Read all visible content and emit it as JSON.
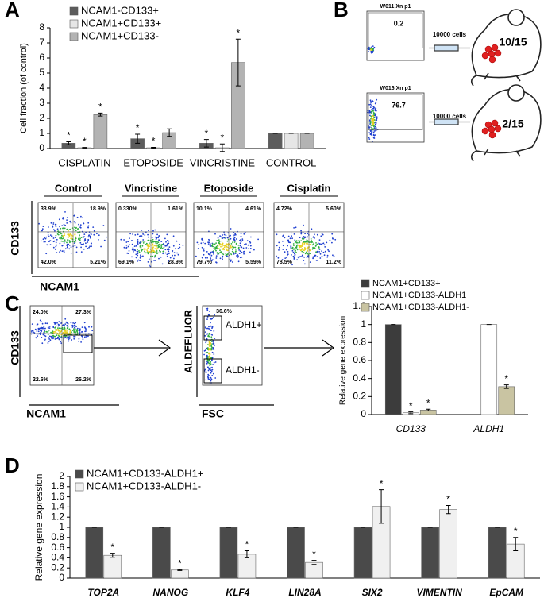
{
  "panel_labels": {
    "a": "A",
    "b": "B",
    "c": "C",
    "d": "D"
  },
  "chart_data": [
    {
      "type": "bar",
      "ylabel": "Cell fraction (of control)",
      "categories": [
        "CISPLATIN",
        "ETOPOSIDE",
        "VINCRISTINE",
        "CONTROL"
      ],
      "series": [
        {
          "name": "NCAM1-CD133+",
          "color": "#5c5c5c",
          "values": [
            0.35,
            0.65,
            0.35,
            1
          ],
          "errors": [
            0.1,
            0.3,
            0.25,
            0
          ],
          "labels": [
            "*",
            "*",
            "*",
            null
          ]
        },
        {
          "name": "NCAM1+CD133+",
          "color": "#e6e6e6",
          "values": [
            0.05,
            0.05,
            0.05,
            1
          ],
          "errors": [
            0.02,
            0.03,
            0.25,
            0
          ],
          "labels": [
            "*",
            "*",
            "*",
            null
          ]
        },
        {
          "name": "NCAM1+CD133-",
          "color": "#b3b3b3",
          "values": [
            2.25,
            1.05,
            5.7,
            1
          ],
          "errors": [
            0.1,
            0.25,
            1.55,
            0
          ],
          "labels": [
            "*",
            null,
            "*",
            null
          ]
        }
      ],
      "ylim": [
        0,
        8
      ],
      "yticks": [
        0,
        1,
        2,
        3,
        4,
        5,
        6,
        7,
        8
      ],
      "grid": false
    },
    {
      "type": "bar",
      "ylabel": "Relative gene expression",
      "categories": [
        "CD133",
        "ALDH1"
      ],
      "series": [
        {
          "name": "NCAM1+CD133+",
          "color": "#3c3c3c",
          "values": [
            1,
            null
          ],
          "errors": [
            0,
            null
          ],
          "labels": [
            null,
            null
          ]
        },
        {
          "name": "NCAM1+CD133-ALDH1+",
          "color": "#ffffff",
          "values": [
            0.02,
            1
          ],
          "errors": [
            0.01,
            0
          ],
          "labels": [
            "*",
            null
          ]
        },
        {
          "name": "NCAM1+CD133-ALDH1-",
          "color": "#c9c4a2",
          "values": [
            0.05,
            0.31
          ],
          "errors": [
            0.01,
            0.02
          ],
          "labels": [
            "*",
            "*"
          ]
        }
      ],
      "ylim": [
        0,
        1.2
      ],
      "yticks": [
        0,
        0.2,
        0.4,
        0.6,
        0.8,
        1,
        1.2
      ],
      "grid": false
    },
    {
      "type": "bar",
      "ylabel": "Relative gene expression",
      "categories": [
        "TOP2A",
        "NANOG",
        "KLF4",
        "LIN28A",
        "SIX2",
        "VIMENTIN",
        "EpCAM"
      ],
      "series": [
        {
          "name": "NCAM1+CD133-ALDH1+",
          "color": "#4a4a4a",
          "values": [
            1,
            1,
            1,
            1,
            1,
            1,
            1
          ],
          "errors": [
            0,
            0,
            0,
            0,
            0,
            0,
            0
          ],
          "labels": [
            null,
            null,
            null,
            null,
            null,
            null,
            null
          ]
        },
        {
          "name": "NCAM1+CD133-ALDH1-",
          "color": "#f0f0f0",
          "values": [
            0.45,
            0.16,
            0.47,
            0.31,
            1.41,
            1.35,
            0.67
          ],
          "errors": [
            0.04,
            0.01,
            0.07,
            0.04,
            0.33,
            0.08,
            0.13
          ],
          "labels": [
            "*",
            "*",
            "*",
            "*",
            "*",
            "*",
            "*"
          ]
        }
      ],
      "ylim": [
        0,
        2
      ],
      "yticks": [
        0,
        0.2,
        0.4,
        0.6,
        0.8,
        1,
        1.2,
        1.4,
        1.6,
        1.8,
        2
      ],
      "grid": false
    }
  ],
  "flow_a": {
    "y_label": "CD133",
    "x_label": "NCAM1",
    "plots": [
      {
        "title": "Control",
        "quadrants": [
          "33.9%",
          "18.9%",
          "42.0%",
          "5.21%"
        ]
      },
      {
        "title": "Vincristine",
        "quadrants": [
          "0.330%",
          "1.61%",
          "69.1%",
          "28.9%"
        ]
      },
      {
        "title": "Etoposide",
        "quadrants": [
          "10.1%",
          "4.61%",
          "79.7%",
          "5.59%"
        ]
      },
      {
        "title": "Cisplatin",
        "quadrants": [
          "4.72%",
          "5.60%",
          "78.5%",
          "11.2%"
        ]
      }
    ]
  },
  "panel_b": {
    "rows": [
      {
        "sample": "W011 Xn p1",
        "gate": "0.2",
        "cells": "10000 cells",
        "tumors": "10/15"
      },
      {
        "sample": "W016 Xn p1",
        "gate": "76.7",
        "cells": "10000 cells",
        "tumors": "2/15"
      }
    ]
  },
  "flow_c": {
    "plot1": {
      "y_label": "CD133",
      "x_label": "NCAM1",
      "quadrants": [
        "24.0%",
        "27.3%",
        "22.6%",
        "26.2%"
      ]
    },
    "plot2": {
      "y_label": "ALDEFLUOR",
      "x_label": "FSC",
      "gate_percent": "36.6%",
      "gates": [
        "ALDH1+",
        "ALDH1-"
      ]
    }
  }
}
